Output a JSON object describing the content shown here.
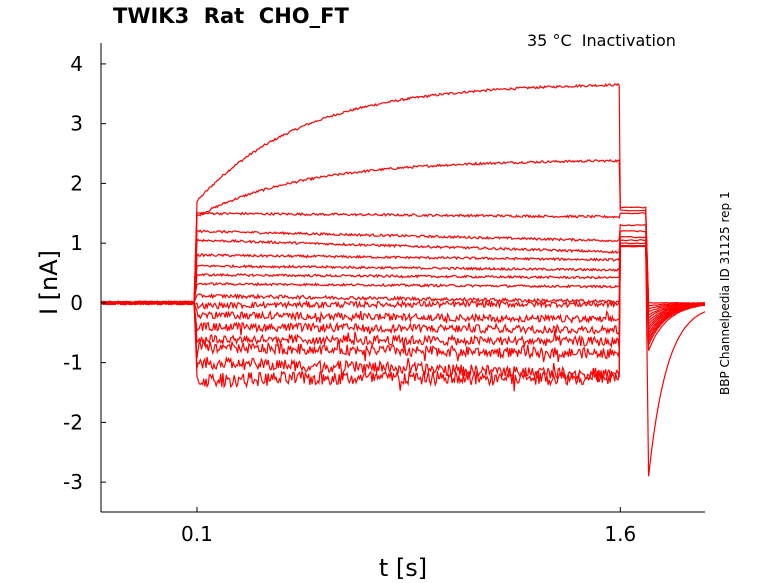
{
  "chart_data": {
    "type": "line",
    "title": "TWIK3  Rat  CHO_FT",
    "subtitle": "35 °C  Inactivation",
    "side_note": "BBP Channelpedia ID 31125 rep 1",
    "xlabel": "t [s]",
    "ylabel": "I [nA]",
    "xlim": [
      -0.24,
      1.9
    ],
    "ylim": [
      -3.5,
      4.35
    ],
    "xticks": [
      0.1,
      1.6
    ],
    "xtick_labels": [
      "0.1",
      "1.6"
    ],
    "yticks": [
      -3,
      -2,
      -1,
      0,
      1,
      2,
      3,
      4
    ],
    "ytick_labels": [
      "-3",
      "-2",
      "-1",
      "0",
      "1",
      "2",
      "3",
      "4"
    ],
    "grid": false,
    "color": "#ff0000",
    "step_window": {
      "start": 0.1,
      "end": 1.6
    },
    "tail_window": {
      "start": 1.6,
      "end": 1.7
    },
    "second_tail_start": 1.7,
    "series": [
      {
        "step_start": 1.7,
        "step_end": 3.65,
        "tail": 1.6,
        "tail_end": 0.0,
        "noise": 0.02
      },
      {
        "step_start": 1.45,
        "step_end": 2.38,
        "tail": 1.55,
        "tail_end": -0.05,
        "noise": 0.02
      },
      {
        "step_start": 1.5,
        "step_end": 1.44,
        "tail": 1.5,
        "tail_end": -0.1,
        "noise": 0.02
      },
      {
        "step_start": 1.2,
        "step_end": 1.04,
        "tail": 1.3,
        "tail_end": -0.15,
        "noise": 0.02
      },
      {
        "step_start": 1.05,
        "step_end": 0.85,
        "tail": 1.2,
        "tail_end": -0.2,
        "noise": 0.02
      },
      {
        "step_start": 0.8,
        "step_end": 0.72,
        "tail": 1.1,
        "tail_end": -0.25,
        "noise": 0.02
      },
      {
        "step_start": 0.62,
        "step_end": 0.55,
        "tail": 1.05,
        "tail_end": -0.3,
        "noise": 0.02
      },
      {
        "step_start": 0.47,
        "step_end": 0.42,
        "tail": 1.0,
        "tail_end": -0.35,
        "noise": 0.02
      },
      {
        "step_start": 0.32,
        "step_end": 0.27,
        "tail": 0.95,
        "tail_end": -0.4,
        "noise": 0.02
      },
      {
        "step_start": 0.12,
        "step_end": 0.02,
        "tail": 0.95,
        "tail_end": -0.45,
        "noise": 0.03
      },
      {
        "step_start": -0.05,
        "step_end": -0.02,
        "tail": 0.95,
        "tail_end": -0.5,
        "noise": 0.05
      },
      {
        "step_start": -0.2,
        "step_end": -0.28,
        "tail": 0.95,
        "tail_end": -0.55,
        "noise": 0.06
      },
      {
        "step_start": -0.4,
        "step_end": -0.45,
        "tail": 0.95,
        "tail_end": -0.6,
        "noise": 0.07
      },
      {
        "step_start": -0.6,
        "step_end": -0.65,
        "tail": 0.95,
        "tail_end": -0.65,
        "noise": 0.08
      },
      {
        "step_start": -0.75,
        "step_end": -0.85,
        "tail": 0.95,
        "tail_end": -0.7,
        "noise": 0.09
      },
      {
        "step_start": -1.0,
        "step_end": -1.2,
        "tail": 0.95,
        "tail_end": -0.8,
        "noise": 0.1
      },
      {
        "step_start": -1.3,
        "step_end": -1.25,
        "tail": 0.95,
        "tail_end": -2.9,
        "noise": 0.12
      }
    ]
  }
}
